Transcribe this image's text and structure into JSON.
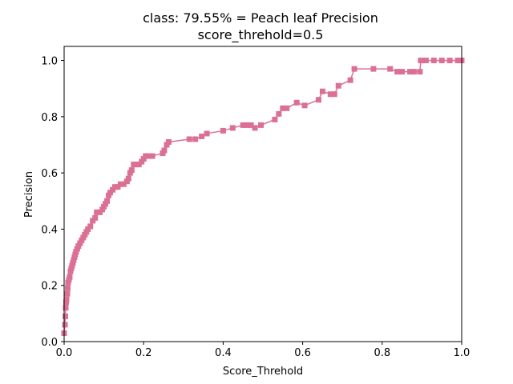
{
  "chart_data": {
    "type": "line",
    "title": "class: 79.55% = Peach leaf Precision",
    "subtitle": "score_threhold=0.5",
    "xlabel": "Score_Threhold",
    "ylabel": "Precision",
    "xlim": [
      0.0,
      1.0
    ],
    "ylim": [
      0.0,
      1.05
    ],
    "xticks": [
      "0.0",
      "0.2",
      "0.4",
      "0.6",
      "0.8",
      "1.0"
    ],
    "yticks": [
      "0.0",
      "0.2",
      "0.4",
      "0.6",
      "0.8",
      "1.0"
    ],
    "grid": false,
    "series": [
      {
        "marker": "square",
        "color": "#DB7093",
        "points": [
          [
            0.0,
            0.03
          ],
          [
            0.002,
            0.06
          ],
          [
            0.003,
            0.09
          ],
          [
            0.004,
            0.12
          ],
          [
            0.005,
            0.14
          ],
          [
            0.006,
            0.15
          ],
          [
            0.008,
            0.17
          ],
          [
            0.009,
            0.19
          ],
          [
            0.01,
            0.21
          ],
          [
            0.012,
            0.22
          ],
          [
            0.014,
            0.23
          ],
          [
            0.016,
            0.25
          ],
          [
            0.018,
            0.26
          ],
          [
            0.02,
            0.27
          ],
          [
            0.022,
            0.28
          ],
          [
            0.024,
            0.29
          ],
          [
            0.026,
            0.3
          ],
          [
            0.028,
            0.31
          ],
          [
            0.03,
            0.32
          ],
          [
            0.033,
            0.33
          ],
          [
            0.036,
            0.34
          ],
          [
            0.04,
            0.35
          ],
          [
            0.044,
            0.36
          ],
          [
            0.048,
            0.37
          ],
          [
            0.052,
            0.38
          ],
          [
            0.056,
            0.39
          ],
          [
            0.06,
            0.4
          ],
          [
            0.066,
            0.41
          ],
          [
            0.072,
            0.43
          ],
          [
            0.078,
            0.44
          ],
          [
            0.082,
            0.46
          ],
          [
            0.09,
            0.46
          ],
          [
            0.096,
            0.47
          ],
          [
            0.1,
            0.48
          ],
          [
            0.104,
            0.49
          ],
          [
            0.108,
            0.5
          ],
          [
            0.112,
            0.52
          ],
          [
            0.116,
            0.53
          ],
          [
            0.122,
            0.54
          ],
          [
            0.128,
            0.55
          ],
          [
            0.135,
            0.55
          ],
          [
            0.142,
            0.56
          ],
          [
            0.15,
            0.56
          ],
          [
            0.158,
            0.57
          ],
          [
            0.162,
            0.58
          ],
          [
            0.166,
            0.6
          ],
          [
            0.17,
            0.61
          ],
          [
            0.175,
            0.63
          ],
          [
            0.18,
            0.63
          ],
          [
            0.188,
            0.63
          ],
          [
            0.195,
            0.64
          ],
          [
            0.2,
            0.65
          ],
          [
            0.205,
            0.66
          ],
          [
            0.212,
            0.66
          ],
          [
            0.222,
            0.66
          ],
          [
            0.248,
            0.67
          ],
          [
            0.252,
            0.68
          ],
          [
            0.258,
            0.7
          ],
          [
            0.263,
            0.71
          ],
          [
            0.315,
            0.72
          ],
          [
            0.33,
            0.72
          ],
          [
            0.346,
            0.73
          ],
          [
            0.359,
            0.74
          ],
          [
            0.4,
            0.75
          ],
          [
            0.424,
            0.76
          ],
          [
            0.45,
            0.77
          ],
          [
            0.46,
            0.77
          ],
          [
            0.47,
            0.77
          ],
          [
            0.48,
            0.76
          ],
          [
            0.495,
            0.77
          ],
          [
            0.53,
            0.79
          ],
          [
            0.54,
            0.81
          ],
          [
            0.55,
            0.83
          ],
          [
            0.56,
            0.83
          ],
          [
            0.585,
            0.85
          ],
          [
            0.605,
            0.84
          ],
          [
            0.64,
            0.86
          ],
          [
            0.65,
            0.89
          ],
          [
            0.67,
            0.88
          ],
          [
            0.68,
            0.88
          ],
          [
            0.69,
            0.91
          ],
          [
            0.72,
            0.93
          ],
          [
            0.73,
            0.97
          ],
          [
            0.778,
            0.97
          ],
          [
            0.82,
            0.97
          ],
          [
            0.838,
            0.96
          ],
          [
            0.85,
            0.96
          ],
          [
            0.87,
            0.96
          ],
          [
            0.88,
            0.96
          ],
          [
            0.895,
            0.96
          ],
          [
            0.897,
            1.0
          ],
          [
            0.91,
            1.0
          ],
          [
            0.93,
            1.0
          ],
          [
            0.95,
            1.0
          ],
          [
            0.97,
            1.0
          ],
          [
            0.99,
            1.0
          ],
          [
            1.0,
            1.0
          ]
        ]
      }
    ]
  }
}
